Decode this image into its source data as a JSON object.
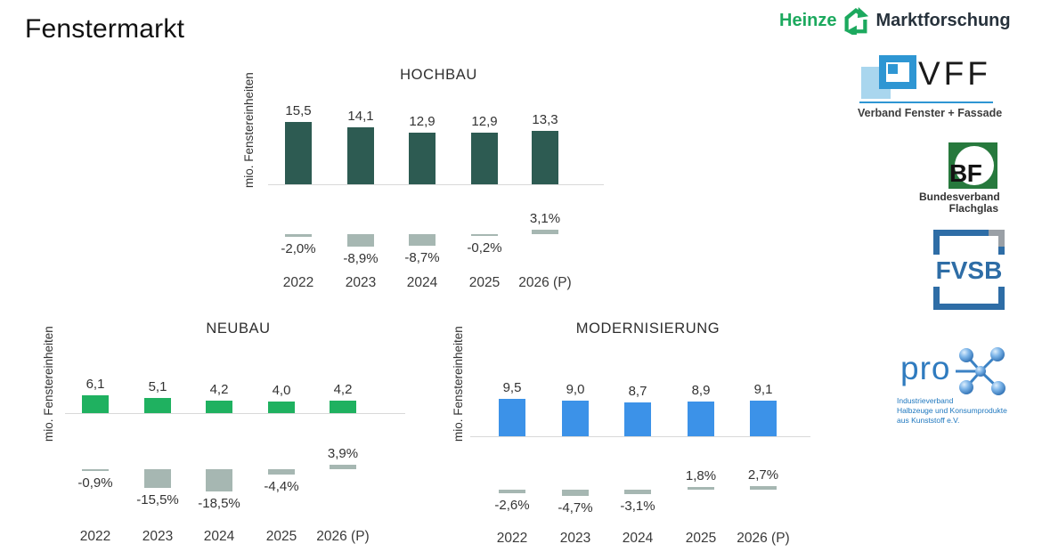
{
  "page": {
    "title": "Fenstermarkt"
  },
  "chart_data": [
    {
      "type": "bar",
      "title": "HOCHBAU",
      "ylabel": "mio. Fenstereinheiten",
      "categories": [
        "2022",
        "2023",
        "2024",
        "2025",
        "2026 (P)"
      ],
      "values": [
        15.5,
        14.1,
        12.9,
        12.9,
        13.3
      ],
      "value_labels": [
        "15,5",
        "14,1",
        "12,9",
        "12,9",
        "13,3"
      ],
      "pct_change": [
        -2.0,
        -8.9,
        -8.7,
        -0.2,
        3.1
      ],
      "pct_labels": [
        "-2,0%",
        "-8,9%",
        "-8,7%",
        "-0,2%",
        "3,1%"
      ],
      "bar_color": "#2d5b52",
      "legend": "none",
      "grid": "off"
    },
    {
      "type": "bar",
      "title": "NEUBAU",
      "ylabel": "mio. Fenstereinheiten",
      "categories": [
        "2022",
        "2023",
        "2024",
        "2025",
        "2026 (P)"
      ],
      "values": [
        6.1,
        5.1,
        4.2,
        4.0,
        4.2
      ],
      "value_labels": [
        "6,1",
        "5,1",
        "4,2",
        "4,0",
        "4,2"
      ],
      "pct_change": [
        -0.9,
        -15.5,
        -18.5,
        -4.4,
        3.9
      ],
      "pct_labels": [
        "-0,9%",
        "-15,5%",
        "-18,5%",
        "-4,4%",
        "3,9%"
      ],
      "bar_color": "#1fb160",
      "legend": "none",
      "grid": "off"
    },
    {
      "type": "bar",
      "title": "MODERNISIERUNG",
      "ylabel": "mio. Fenstereinheiten",
      "categories": [
        "2022",
        "2023",
        "2024",
        "2025",
        "2026 (P)"
      ],
      "values": [
        9.5,
        9.0,
        8.7,
        8.9,
        9.1
      ],
      "value_labels": [
        "9,5",
        "9,0",
        "8,7",
        "8,9",
        "9,1"
      ],
      "pct_change": [
        -2.6,
        -4.7,
        -3.1,
        1.8,
        2.7
      ],
      "pct_labels": [
        "-2,6%",
        "-4,7%",
        "-3,1%",
        "1,8%",
        "2,7%"
      ],
      "bar_color": "#3c92e8",
      "legend": "none",
      "grid": "off"
    }
  ],
  "colors": {
    "pct_bar": "#a6b7b2",
    "axis_line": "#d9d9d9",
    "hochbau_bar": "#2d5b52",
    "neubau_bar": "#1fb160",
    "modernisierung_bar": "#3c92e8",
    "heinze_green": "#1ca95e",
    "vff_blue": "#2e96d3",
    "bf_green": "#27793d",
    "fvsb_blue": "#2e6da6",
    "prok_blue": "#2f7bbf"
  },
  "logos": {
    "heinze": {
      "part1": "Heinze",
      "part2": "Marktforschung"
    },
    "vff": {
      "abbr": "VFF",
      "subtitle": "Verband Fenster + Fassade"
    },
    "bf": {
      "abbr": "BF",
      "subtitle_line1": "Bundesverband",
      "subtitle_line2": "Flachglas"
    },
    "fvsb": {
      "abbr": "FVSB"
    },
    "prok": {
      "abbr": "pro",
      "subtitle_line1": "Industrieverband",
      "subtitle_line2": "Halbzeuge und Konsumprodukte",
      "subtitle_line3": "aus Kunststoff e.V."
    }
  }
}
